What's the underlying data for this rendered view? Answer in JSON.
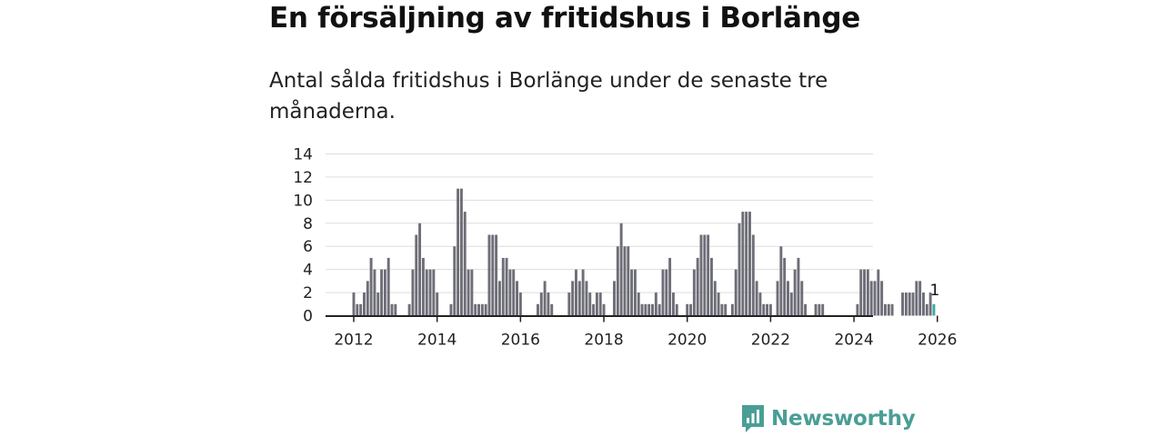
{
  "title": "En försäljning av fritidshus i Borlänge",
  "subtitle": "Antal sålda fritidshus i Borlänge under de senaste tre månaderna.",
  "brand": {
    "name": "Newsworthy",
    "color": "#4a9e96",
    "icon": "newsworthy-logo-icon"
  },
  "colors": {
    "bar": "#6e6e78",
    "highlight": "#3fa89e",
    "grid": "#dddddd",
    "axis": "#222222"
  },
  "chart_data": {
    "type": "bar",
    "x_start": "2012-01",
    "x_interval": "month",
    "ylim": [
      0,
      14
    ],
    "yticks": [
      0,
      2,
      4,
      6,
      8,
      10,
      12,
      14
    ],
    "xticks": [
      "2012",
      "2014",
      "2016",
      "2018",
      "2020",
      "2022",
      "2024",
      "2026"
    ],
    "xlabel": "",
    "ylabel": "",
    "grid": true,
    "highlight_last": true,
    "annotation": {
      "label": "1",
      "at": "2026-02"
    },
    "values": [
      2,
      1,
      1,
      2,
      3,
      5,
      4,
      2,
      4,
      4,
      5,
      1,
      1,
      0,
      0,
      0,
      1,
      4,
      7,
      8,
      5,
      4,
      4,
      4,
      2,
      0,
      0,
      0,
      1,
      6,
      11,
      11,
      9,
      4,
      4,
      1,
      1,
      1,
      1,
      7,
      7,
      7,
      3,
      5,
      5,
      4,
      4,
      3,
      2,
      0,
      0,
      0,
      0,
      1,
      2,
      3,
      2,
      1,
      0,
      0,
      0,
      0,
      2,
      3,
      4,
      3,
      4,
      3,
      2,
      1,
      2,
      2,
      1,
      0,
      0,
      3,
      6,
      8,
      6,
      6,
      4,
      4,
      2,
      1,
      1,
      1,
      1,
      2,
      1,
      4,
      4,
      5,
      2,
      1,
      0,
      0,
      1,
      1,
      4,
      5,
      7,
      7,
      7,
      5,
      3,
      2,
      1,
      1,
      0,
      1,
      4,
      8,
      9,
      9,
      9,
      7,
      3,
      2,
      1,
      1,
      1,
      0,
      3,
      6,
      5,
      3,
      2,
      4,
      5,
      3,
      1,
      0,
      0,
      1,
      1,
      1,
      0,
      0,
      0,
      0,
      0,
      0,
      0,
      0,
      0,
      1,
      4,
      4,
      4,
      3,
      3,
      4,
      3,
      1,
      1,
      1,
      0,
      0,
      2,
      2,
      2,
      2,
      3,
      3,
      2,
      1,
      2,
      1
    ]
  }
}
